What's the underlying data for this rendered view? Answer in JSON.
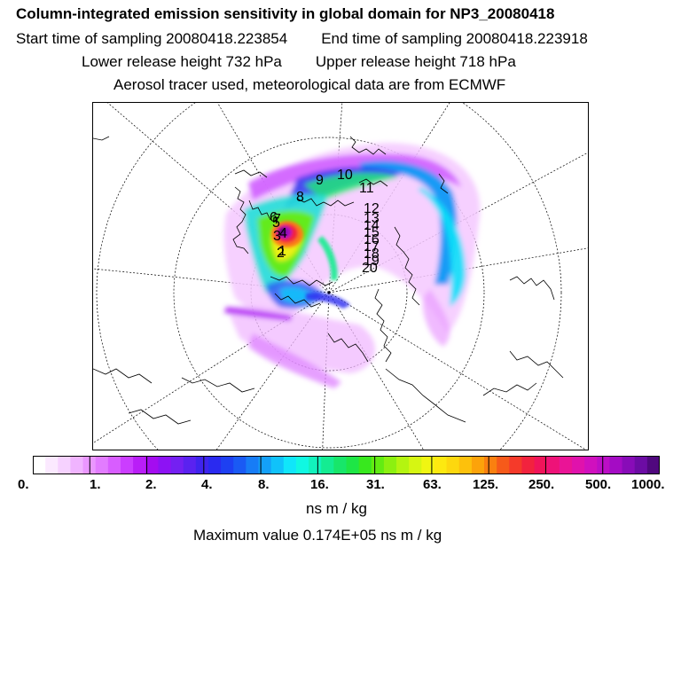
{
  "header": {
    "title": "Column-integrated emission sensitivity in global domain for NP3_20080418",
    "start_time": "Start time of sampling 20080418.223854",
    "end_time": "End time of sampling 20080418.223918",
    "lower_release": "Lower release height  732 hPa",
    "upper_release": "Upper release height  718 hPa",
    "tracer_info": "Aerosol tracer used, meteorological data are from ECMWF"
  },
  "map": {
    "projection": "polar stereographic",
    "day_labels": [
      "1",
      "2",
      "3",
      "4",
      "5",
      "6",
      "7",
      "8",
      "9",
      "10",
      "11",
      "12",
      "13",
      "14",
      "15",
      "16",
      "17",
      "18",
      "19",
      "20"
    ]
  },
  "colorbar": {
    "colors": [
      "#ffffff",
      "#fbe9ff",
      "#f6d2ff",
      "#f0b4ff",
      "#ea97ff",
      "#e27cff",
      "#d85dff",
      "#cb3dff",
      "#b91ef7",
      "#a40cf0",
      "#8d12f4",
      "#7420f2",
      "#5a22f0",
      "#3f24ee",
      "#2a2af0",
      "#1e40f2",
      "#1a5af4",
      "#177cf6",
      "#14a0f8",
      "#10c2fa",
      "#10e6fa",
      "#10f8e2",
      "#12f2bc",
      "#14ec92",
      "#18e66a",
      "#1ee646",
      "#38e81e",
      "#62ec12",
      "#8cf010",
      "#b4f410",
      "#d6f612",
      "#f0f612",
      "#fde910",
      "#fdd80e",
      "#fdc10c",
      "#fca30a",
      "#fa8010",
      "#f65a1a",
      "#f53a2a",
      "#f2223e",
      "#f0145a",
      "#ee1278",
      "#ea1496",
      "#e012ac",
      "#d010be",
      "#bc0ec6",
      "#a40cc4",
      "#880cb8",
      "#6c0ca4",
      "#50087e"
    ],
    "tick_labels": [
      "0.",
      "1.",
      "2.",
      "4.",
      "8.",
      "16.",
      "31.",
      "63.",
      "125.",
      "250.",
      "500.",
      "1000."
    ],
    "units": "ns m / kg"
  },
  "footer": {
    "max_value": "Maximum value  0.174E+05 ns m / kg"
  }
}
